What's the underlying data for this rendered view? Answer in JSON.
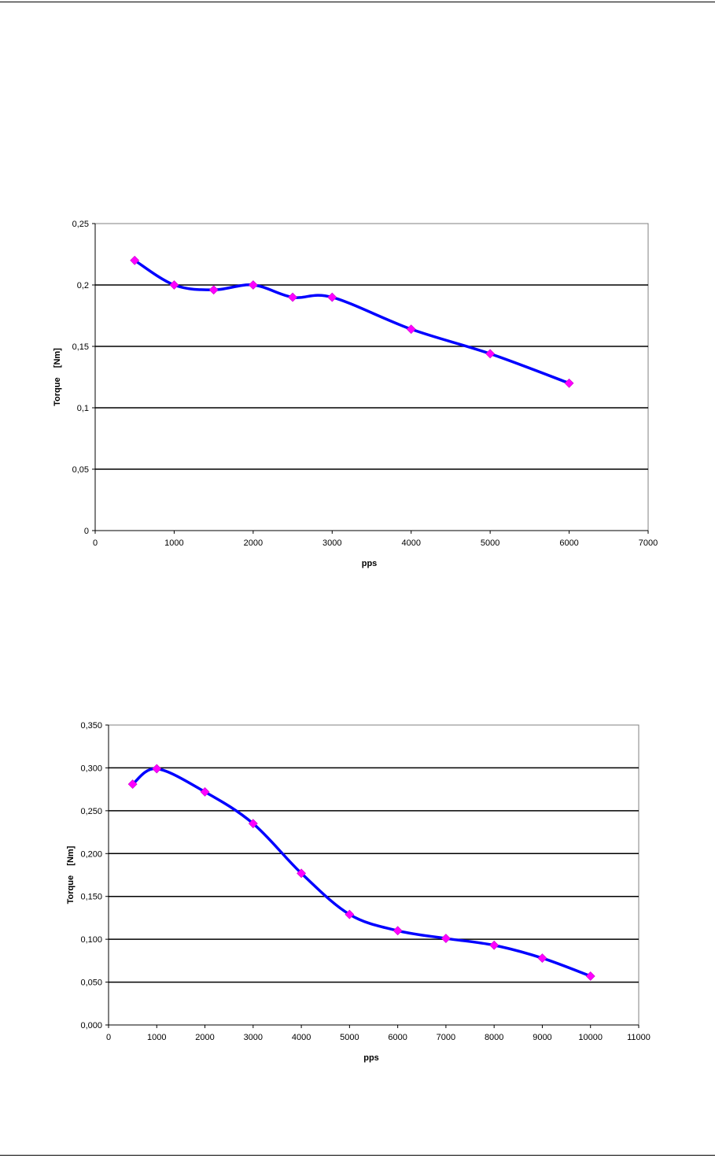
{
  "chart_data": [
    {
      "type": "line",
      "title": "",
      "xlabel": "pps",
      "ylabel": "Torque    [Nm]",
      "xlim": [
        0,
        7000
      ],
      "ylim": [
        0,
        0.25
      ],
      "x_ticks": [
        0,
        1000,
        2000,
        3000,
        4000,
        5000,
        6000,
        7000
      ],
      "x_tick_labels": [
        "0",
        "1000",
        "2000",
        "3000",
        "4000",
        "5000",
        "6000",
        "7000"
      ],
      "y_ticks": [
        0,
        0.05,
        0.1,
        0.15,
        0.2,
        0.25
      ],
      "y_tick_labels": [
        "0",
        "0,05",
        "0,1",
        "0,15",
        "0,2",
        "0,25"
      ],
      "grid": "horizontal",
      "legend": "none",
      "line_color": "#0000ff",
      "marker_color": "#ff00ff",
      "marker": "diamond",
      "series": [
        {
          "x": [
            500,
            1000,
            1500,
            2000,
            2500,
            3000,
            4000,
            5000,
            6000
          ],
          "y": [
            0.22,
            0.2,
            0.196,
            0.2,
            0.19,
            0.19,
            0.164,
            0.144,
            0.12
          ]
        }
      ]
    },
    {
      "type": "line",
      "title": "",
      "xlabel": "pps",
      "ylabel": "Torque    [Nm]",
      "xlim": [
        0,
        11000
      ],
      "ylim": [
        0,
        0.35
      ],
      "x_ticks": [
        0,
        1000,
        2000,
        3000,
        4000,
        5000,
        6000,
        7000,
        8000,
        9000,
        10000,
        11000
      ],
      "x_tick_labels": [
        "0",
        "1000",
        "2000",
        "3000",
        "4000",
        "5000",
        "6000",
        "7000",
        "8000",
        "9000",
        "10000",
        "11000"
      ],
      "y_ticks": [
        0,
        0.05,
        0.1,
        0.15,
        0.2,
        0.25,
        0.3,
        0.35
      ],
      "y_tick_labels": [
        "0,000",
        "0,050",
        "0,100",
        "0,150",
        "0,200",
        "0,250",
        "0,300",
        "0,350"
      ],
      "grid": "horizontal",
      "legend": "none",
      "line_color": "#0000ff",
      "marker_color": "#ff00ff",
      "marker": "diamond",
      "series": [
        {
          "x": [
            500,
            1000,
            2000,
            3000,
            4000,
            5000,
            6000,
            7000,
            8000,
            9000,
            10000
          ],
          "y": [
            0.281,
            0.299,
            0.272,
            0.235,
            0.177,
            0.129,
            0.11,
            0.101,
            0.093,
            0.078,
            0.057
          ]
        }
      ]
    }
  ]
}
